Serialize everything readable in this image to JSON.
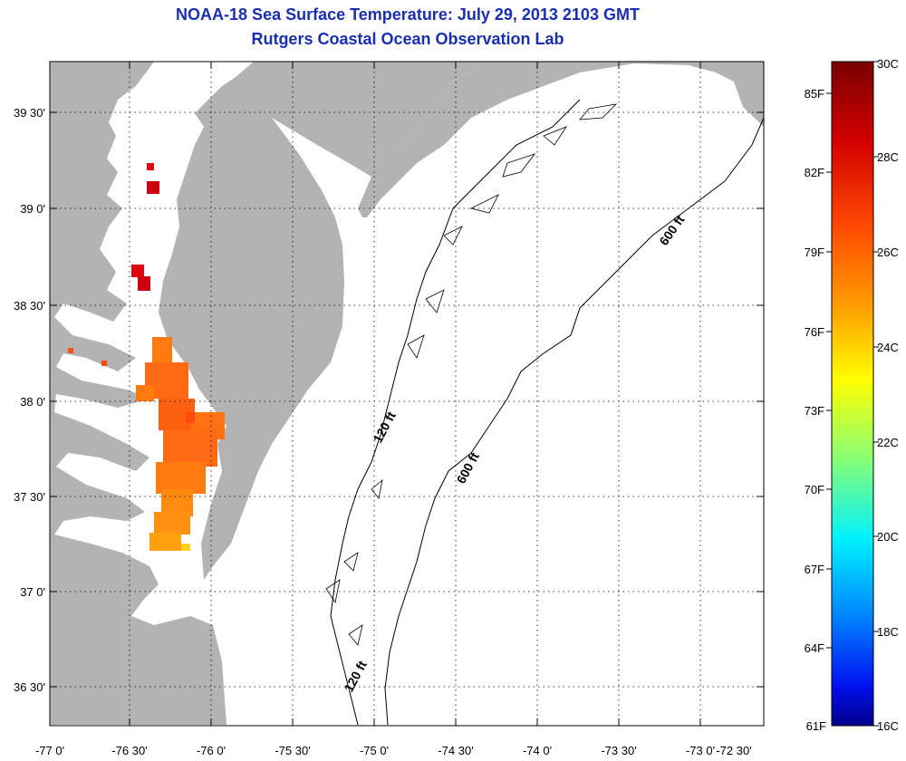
{
  "header": {
    "title": "NOAA-18 Sea Surface Temperature:  July 29, 2013 2103 GMT",
    "subtitle": "Rutgers Coastal Ocean Observation Lab"
  },
  "map": {
    "land_color": "#b3b3b3",
    "water_color": "#ffffff",
    "grid": "dotted",
    "lon_labels": [
      "-77 0'",
      "-76 30'",
      "-76 0'",
      "-75 30'",
      "-75 0'",
      "-74 30'",
      "-74 0'",
      "-73 30'",
      "-73 0'",
      "-72 30'"
    ],
    "lat_labels": [
      "39 30'",
      "39 0'",
      "38 30'",
      "38 0'",
      "37 30'",
      "37 0'",
      "36 30'"
    ],
    "contour_labels": [
      {
        "text": "120 ft"
      },
      {
        "text": "600 ft"
      },
      {
        "text": "600 ft"
      },
      {
        "text": "120 ft"
      }
    ]
  },
  "colorbar": {
    "fahrenheit_labels": [
      "85F",
      "82F",
      "79F",
      "76F",
      "73F",
      "70F",
      "67F",
      "64F",
      "61F"
    ],
    "celsius_labels": [
      "30C",
      "28C",
      "26C",
      "24C",
      "22C",
      "20C",
      "18C",
      "16C"
    ],
    "colors": [
      "#800000",
      "#cc0000",
      "#ff4000",
      "#ff9900",
      "#ffff00",
      "#80ff80",
      "#00ffff",
      "#0080ff",
      "#0000ff",
      "#00008c"
    ]
  }
}
